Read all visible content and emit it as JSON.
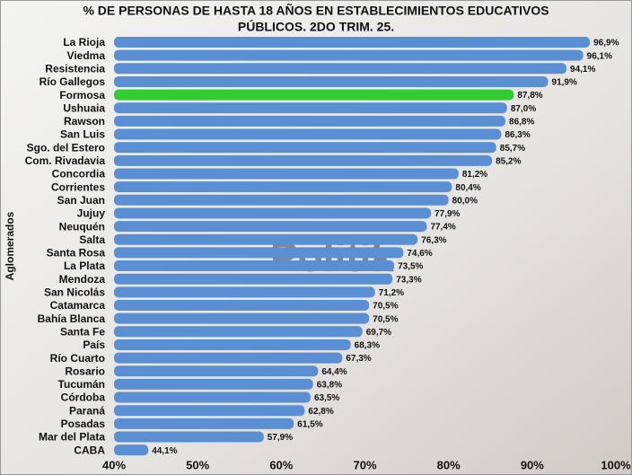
{
  "chart_data": {
    "type": "barh",
    "title": [
      "% DE PERSONAS DE HASTA 18 AÑOS EN ESTABLECIMIENTOS EDUCATIVOS",
      "PÚBLICOS. 2DO TRIM. 25."
    ],
    "ylabel": "Aglomerados",
    "watermark": "Politik",
    "categories": [
      "La Rioja",
      "Viedma",
      "Resistencia",
      "Río Gallegos",
      "Formosa",
      "Ushuaia",
      "Rawson",
      "San Luis",
      "Sgo. del Estero",
      "Com. Rivadavia",
      "Concordia",
      "Corrientes",
      "San Juan",
      "Jujuy",
      "Neuquén",
      "Salta",
      "Santa Rosa",
      "La Plata",
      "Mendoza",
      "San Nicolás",
      "Catamarca",
      "Bahía Blanca",
      "Santa Fe",
      "País",
      "Río Cuarto",
      "Rosario",
      "Tucumán",
      "Córdoba",
      "Paraná",
      "Posadas",
      "Mar del Plata",
      "CABA"
    ],
    "values": [
      96.9,
      96.1,
      94.1,
      91.9,
      87.8,
      87.0,
      86.8,
      86.3,
      85.7,
      85.2,
      81.2,
      80.4,
      80.0,
      77.9,
      77.4,
      76.3,
      74.6,
      73.5,
      73.3,
      71.2,
      70.5,
      70.5,
      69.7,
      68.3,
      67.3,
      64.4,
      63.8,
      63.5,
      62.8,
      61.5,
      57.9,
      44.1
    ],
    "value_labels": [
      "96,9%",
      "96,1%",
      "94,1%",
      "91,9%",
      "87,8%",
      "87,0%",
      "86,8%",
      "86,3%",
      "85,7%",
      "85,2%",
      "81,2%",
      "80,4%",
      "80,0%",
      "77,9%",
      "77,4%",
      "76,3%",
      "74,6%",
      "73,5%",
      "73,3%",
      "71,2%",
      "70,5%",
      "70,5%",
      "69,7%",
      "68,3%",
      "67,3%",
      "64,4%",
      "63,8%",
      "63,5%",
      "62,8%",
      "61,5%",
      "57,9%",
      "44,1%"
    ],
    "color": "#5b8fd4",
    "highlight": {
      "category": "Formosa",
      "color": "#33cc33"
    },
    "xlim": [
      40,
      100
    ],
    "xticks": [
      {
        "value": 40,
        "label": "40%"
      },
      {
        "value": 50,
        "label": "50%"
      },
      {
        "value": 60,
        "label": "60%"
      },
      {
        "value": 70,
        "label": "70%"
      },
      {
        "value": 80,
        "label": "80%"
      },
      {
        "value": 90,
        "label": "90%"
      },
      {
        "value": 100,
        "label": "100%"
      }
    ],
    "grid": false
  }
}
